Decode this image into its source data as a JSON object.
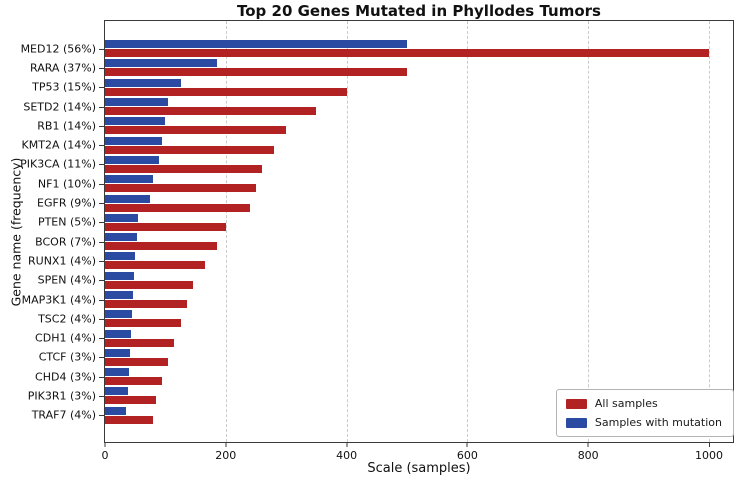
{
  "chart_data": {
    "type": "bar",
    "orientation": "horizontal",
    "title": "Top 20 Genes Mutated in Phyllodes Tumors",
    "xlabel": "Scale (samples)",
    "ylabel": "Gene name (frequency)",
    "xlim": [
      0,
      1042
    ],
    "xticks": [
      0,
      200,
      400,
      600,
      800,
      1000
    ],
    "grid": "vertical-dashed",
    "legend_position": "lower-right",
    "categories": [
      "MED12 (56%)",
      "RARA (37%)",
      "TP53 (15%)",
      "SETD2 (14%)",
      "RB1 (14%)",
      "KMT2A (14%)",
      "PIK3CA (11%)",
      "NF1 (10%)",
      "EGFR (9%)",
      "PTEN (5%)",
      "BCOR (7%)",
      "RUNX1 (4%)",
      "SPEN (4%)",
      "MAP3K1 (4%)",
      "TSC2 (4%)",
      "CDH1 (4%)",
      "CTCF (3%)",
      "CHD4 (3%)",
      "PIK3R1 (3%)",
      "TRAF7 (4%)"
    ],
    "series": [
      {
        "name": "All samples",
        "color": "#B22222",
        "values": [
          1000,
          500,
          400,
          350,
          300,
          280,
          260,
          250,
          240,
          200,
          185,
          165,
          145,
          135,
          125,
          115,
          105,
          95,
          85,
          80
        ]
      },
      {
        "name": "Samples with mutation",
        "color": "#2B4BA3",
        "values": [
          500,
          185,
          125,
          105,
          100,
          95,
          90,
          80,
          75,
          55,
          53,
          50,
          48,
          46,
          45,
          43,
          42,
          40,
          38,
          35
        ]
      }
    ]
  }
}
